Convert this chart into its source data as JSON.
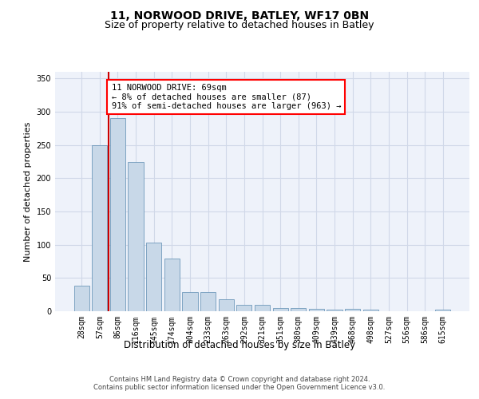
{
  "title1": "11, NORWOOD DRIVE, BATLEY, WF17 0BN",
  "title2": "Size of property relative to detached houses in Batley",
  "xlabel": "Distribution of detached houses by size in Batley",
  "ylabel": "Number of detached properties",
  "categories": [
    "28sqm",
    "57sqm",
    "86sqm",
    "116sqm",
    "145sqm",
    "174sqm",
    "204sqm",
    "233sqm",
    "263sqm",
    "292sqm",
    "321sqm",
    "351sqm",
    "380sqm",
    "409sqm",
    "439sqm",
    "468sqm",
    "498sqm",
    "527sqm",
    "556sqm",
    "586sqm",
    "615sqm"
  ],
  "values": [
    38,
    250,
    291,
    225,
    103,
    79,
    29,
    29,
    18,
    10,
    10,
    5,
    5,
    4,
    3,
    4,
    3,
    0,
    0,
    0,
    3
  ],
  "bar_color": "#c8d8e8",
  "bar_edge_color": "#5a8ab0",
  "red_line_x": 1.5,
  "annotation_text": "11 NORWOOD DRIVE: 69sqm\n← 8% of detached houses are smaller (87)\n91% of semi-detached houses are larger (963) →",
  "annotation_box_color": "white",
  "annotation_box_edge_color": "red",
  "red_line_color": "#cc0000",
  "grid_color": "#d0d8e8",
  "background_color": "#eef2fa",
  "ylim": [
    0,
    360
  ],
  "yticks": [
    0,
    50,
    100,
    150,
    200,
    250,
    300,
    350
  ],
  "footer1": "Contains HM Land Registry data © Crown copyright and database right 2024.",
  "footer2": "Contains public sector information licensed under the Open Government Licence v3.0.",
  "title1_fontsize": 10,
  "title2_fontsize": 9,
  "tick_fontsize": 7,
  "ylabel_fontsize": 8,
  "xlabel_fontsize": 8.5,
  "annotation_fontsize": 7.5,
  "footer_fontsize": 6
}
